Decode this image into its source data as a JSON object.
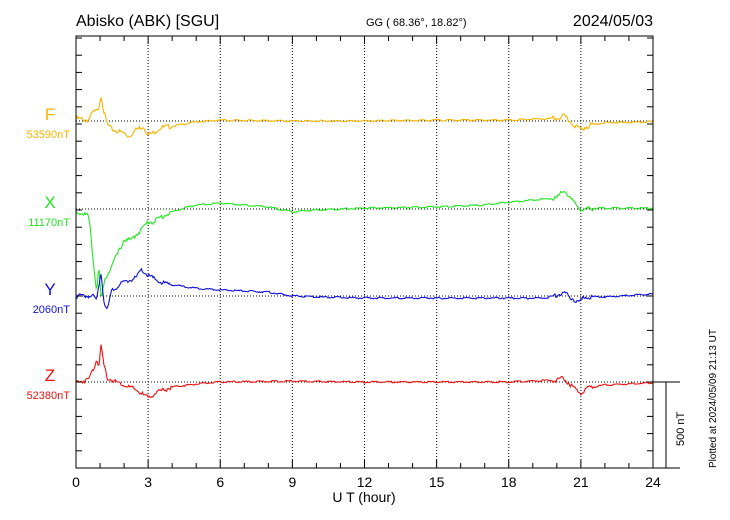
{
  "header": {
    "station": "Abisko (ABK)  [SGU]",
    "coords": "GG ( 68.36°,  18.82°)",
    "date": "2024/05/03"
  },
  "footer": {
    "plotted_at": "Plotted at 2024/05/09 21:13 UT",
    "scale_label": "500 nT"
  },
  "chart_data": {
    "type": "line",
    "title": "Abisko (ABK)  [SGU]",
    "xlabel": "U T (hour)",
    "xlim": [
      0,
      24
    ],
    "xticks": [
      "0",
      "3",
      "6",
      "9",
      "12",
      "15",
      "18",
      "21",
      "24"
    ],
    "scale_bar_nT": 500,
    "grid": "dotted vertical every 3 h, dotted baseline per series",
    "series": [
      {
        "name": "F",
        "baseline_label": "53590nT",
        "color": "#f5b400",
        "points": [
          [
            0,
            15
          ],
          [
            0.5,
            5
          ],
          [
            0.7,
            50
          ],
          [
            0.9,
            60
          ],
          [
            1.05,
            150
          ],
          [
            1.15,
            60
          ],
          [
            1.3,
            -20
          ],
          [
            1.5,
            -50
          ],
          [
            2,
            -70
          ],
          [
            2.2,
            -90
          ],
          [
            2.5,
            -50
          ],
          [
            2.8,
            -30
          ],
          [
            3.0,
            -80
          ],
          [
            3.2,
            -70
          ],
          [
            3.5,
            -40
          ],
          [
            4,
            -30
          ],
          [
            5,
            -5
          ],
          [
            6,
            5
          ],
          [
            9,
            0
          ],
          [
            12,
            0
          ],
          [
            15,
            5
          ],
          [
            18,
            5
          ],
          [
            20,
            15
          ],
          [
            20.3,
            30
          ],
          [
            20.5,
            0
          ],
          [
            20.8,
            -30
          ],
          [
            21,
            -50
          ],
          [
            21.2,
            -35
          ],
          [
            21.5,
            -20
          ],
          [
            22,
            -10
          ],
          [
            24,
            -5
          ]
        ]
      },
      {
        "name": "X",
        "baseline_label": "11170nT",
        "color": "#22e622",
        "points": [
          [
            0,
            -17
          ],
          [
            0.5,
            -35
          ],
          [
            0.6,
            -120
          ],
          [
            0.75,
            -350
          ],
          [
            0.85,
            -470
          ],
          [
            0.95,
            -350
          ],
          [
            1.05,
            -530
          ],
          [
            1.2,
            -410
          ],
          [
            1.5,
            -325
          ],
          [
            1.8,
            -240
          ],
          [
            2.0,
            -180
          ],
          [
            2.3,
            -180
          ],
          [
            2.6,
            -135
          ],
          [
            3,
            -75
          ],
          [
            3.2,
            -75
          ],
          [
            3.5,
            -50
          ],
          [
            4,
            -17
          ],
          [
            4.5,
            5
          ],
          [
            5,
            23
          ],
          [
            6,
            35
          ],
          [
            7,
            23
          ],
          [
            8,
            12
          ],
          [
            9,
            -17
          ],
          [
            10,
            -5
          ],
          [
            12,
            5
          ],
          [
            15,
            12
          ],
          [
            17,
            23
          ],
          [
            18,
            40
          ],
          [
            19,
            52
          ],
          [
            20,
            64
          ],
          [
            20.3,
            110
          ],
          [
            20.6,
            52
          ],
          [
            21,
            -5
          ],
          [
            21.5,
            5
          ],
          [
            22,
            5
          ],
          [
            24,
            5
          ]
        ]
      },
      {
        "name": "Y",
        "baseline_label": "2060nT",
        "color": "#1010e0",
        "points": [
          [
            0,
            0
          ],
          [
            0.7,
            0
          ],
          [
            0.85,
            -25
          ],
          [
            0.95,
            65
          ],
          [
            1.05,
            140
          ],
          [
            1.15,
            -25
          ],
          [
            1.3,
            -80
          ],
          [
            1.5,
            35
          ],
          [
            2,
            80
          ],
          [
            2.5,
            105
          ],
          [
            2.7,
            150
          ],
          [
            3,
            120
          ],
          [
            3.5,
            80
          ],
          [
            4,
            65
          ],
          [
            5,
            45
          ],
          [
            6,
            35
          ],
          [
            8,
            23
          ],
          [
            9,
            0
          ],
          [
            10,
            -5
          ],
          [
            12,
            -12
          ],
          [
            15,
            -12
          ],
          [
            18,
            -12
          ],
          [
            19.5,
            -12
          ],
          [
            20,
            5
          ],
          [
            20.3,
            17
          ],
          [
            20.6,
            -12
          ],
          [
            20.9,
            -35
          ],
          [
            21.2,
            -5
          ],
          [
            22,
            -5
          ],
          [
            24,
            12
          ]
        ]
      },
      {
        "name": "Z",
        "baseline_label": "52380nT",
        "color": "#ee1010",
        "points": [
          [
            0,
            0
          ],
          [
            0.5,
            12
          ],
          [
            0.7,
            70
          ],
          [
            0.85,
            130
          ],
          [
            0.95,
            100
          ],
          [
            1.05,
            215
          ],
          [
            1.15,
            100
          ],
          [
            1.3,
            23
          ],
          [
            1.5,
            12
          ],
          [
            2,
            -17
          ],
          [
            2.5,
            -46
          ],
          [
            3,
            -93
          ],
          [
            3.3,
            -64
          ],
          [
            4,
            -29
          ],
          [
            5,
            -12
          ],
          [
            6,
            0
          ],
          [
            9,
            5
          ],
          [
            12,
            0
          ],
          [
            18,
            0
          ],
          [
            20,
            12
          ],
          [
            20.3,
            23
          ],
          [
            20.6,
            -23
          ],
          [
            21,
            -64
          ],
          [
            21.3,
            -35
          ],
          [
            22,
            -17
          ],
          [
            24,
            -5
          ]
        ]
      }
    ]
  }
}
